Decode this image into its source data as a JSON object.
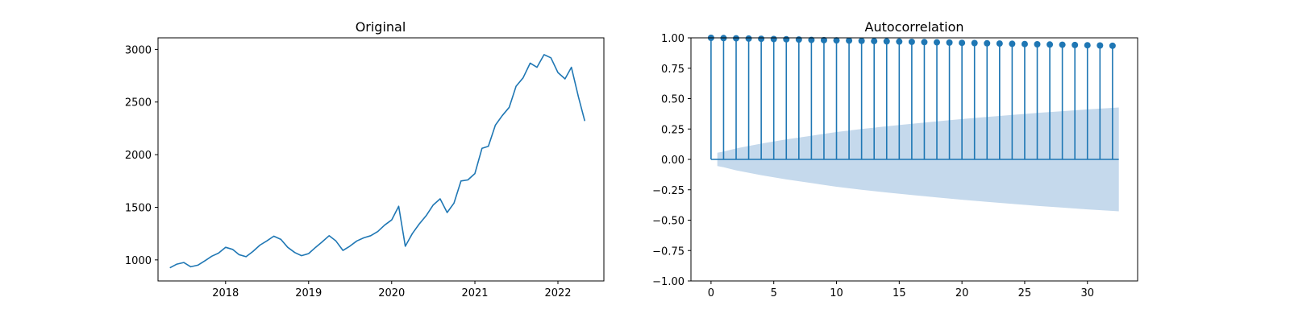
{
  "chart_data": [
    {
      "type": "line",
      "title": "Original",
      "xlabel": "",
      "ylabel": "",
      "xlim": [
        "2017-03-10",
        "2022-07-22"
      ],
      "ylim": [
        800,
        3110
      ],
      "xticks": [
        "2018",
        "2019",
        "2020",
        "2021",
        "2022"
      ],
      "yticks": [
        1000,
        1500,
        2000,
        2500,
        3000
      ],
      "line_color": "#1f77b4",
      "series": [
        {
          "x": [
            "2017-05-01",
            "2017-06-01",
            "2017-07-01",
            "2017-08-01",
            "2017-09-01",
            "2017-10-01",
            "2017-11-01",
            "2017-12-01",
            "2018-01-01",
            "2018-02-01",
            "2018-03-01",
            "2018-04-01",
            "2018-05-01",
            "2018-06-01",
            "2018-07-01",
            "2018-08-01",
            "2018-09-01",
            "2018-10-01",
            "2018-11-01",
            "2018-12-01",
            "2019-01-01",
            "2019-02-01",
            "2019-03-01",
            "2019-04-01",
            "2019-05-01",
            "2019-06-01",
            "2019-07-01",
            "2019-08-01",
            "2019-09-01",
            "2019-10-01",
            "2019-11-01",
            "2019-12-01",
            "2020-01-01",
            "2020-02-01",
            "2020-03-01",
            "2020-04-01",
            "2020-05-01",
            "2020-06-01",
            "2020-07-01",
            "2020-08-01",
            "2020-09-01",
            "2020-10-01",
            "2020-11-01",
            "2020-12-01",
            "2021-01-01",
            "2021-02-01",
            "2021-03-01",
            "2021-04-01",
            "2021-05-01",
            "2021-06-01",
            "2021-07-01",
            "2021-08-01",
            "2021-09-01",
            "2021-10-01",
            "2021-11-01",
            "2021-12-01",
            "2022-01-01",
            "2022-02-01",
            "2022-03-01",
            "2022-04-01",
            "2022-04-29"
          ],
          "y": [
            925,
            960,
            975,
            935,
            950,
            990,
            1035,
            1065,
            1120,
            1100,
            1050,
            1030,
            1080,
            1140,
            1180,
            1225,
            1195,
            1120,
            1070,
            1040,
            1060,
            1120,
            1170,
            1230,
            1180,
            1090,
            1130,
            1180,
            1210,
            1230,
            1270,
            1330,
            1380,
            1510,
            1130,
            1250,
            1340,
            1420,
            1520,
            1580,
            1450,
            1540,
            1750,
            1760,
            1820,
            2060,
            2080,
            2280,
            2370,
            2450,
            2650,
            2730,
            2870,
            2830,
            2950,
            2920,
            2780,
            2720,
            2830,
            2550,
            2320
          ]
        }
      ]
    },
    {
      "type": "stem",
      "title": "Autocorrelation",
      "xlabel": "",
      "ylabel": "",
      "xlim": [
        -1.6,
        34
      ],
      "ylim": [
        -1,
        1
      ],
      "xticks": [
        0,
        5,
        10,
        15,
        20,
        25,
        30
      ],
      "yticks": [
        "1.00",
        "0.75",
        "0.50",
        "0.25",
        "0.00",
        "−0.25",
        "−0.50",
        "−0.75",
        "−1.00"
      ],
      "stem_color": "#1f77b4",
      "band_color": "#c5d9ec",
      "lags": [
        0,
        1,
        2,
        3,
        4,
        5,
        6,
        7,
        8,
        9,
        10,
        11,
        12,
        13,
        14,
        15,
        16,
        17,
        18,
        19,
        20,
        21,
        22,
        23,
        24,
        25,
        26,
        27,
        28,
        29,
        30,
        31,
        32
      ],
      "values": [
        1.0,
        0.998,
        0.996,
        0.994,
        0.992,
        0.99,
        0.988,
        0.986,
        0.983,
        0.981,
        0.979,
        0.977,
        0.975,
        0.973,
        0.971,
        0.969,
        0.967,
        0.965,
        0.963,
        0.961,
        0.959,
        0.957,
        0.955,
        0.953,
        0.951,
        0.949,
        0.947,
        0.945,
        0.943,
        0.941,
        0.939,
        0.937,
        0.935
      ],
      "confidence_band": {
        "lags": [
          0.5,
          1,
          2,
          4,
          6,
          8,
          10,
          12,
          14,
          16,
          18,
          20,
          22,
          24,
          26,
          28,
          30,
          32,
          32.5
        ],
        "upper": [
          0.055,
          0.065,
          0.09,
          0.13,
          0.165,
          0.195,
          0.225,
          0.25,
          0.272,
          0.293,
          0.313,
          0.332,
          0.349,
          0.366,
          0.382,
          0.397,
          0.411,
          0.424,
          0.427
        ]
      }
    }
  ]
}
